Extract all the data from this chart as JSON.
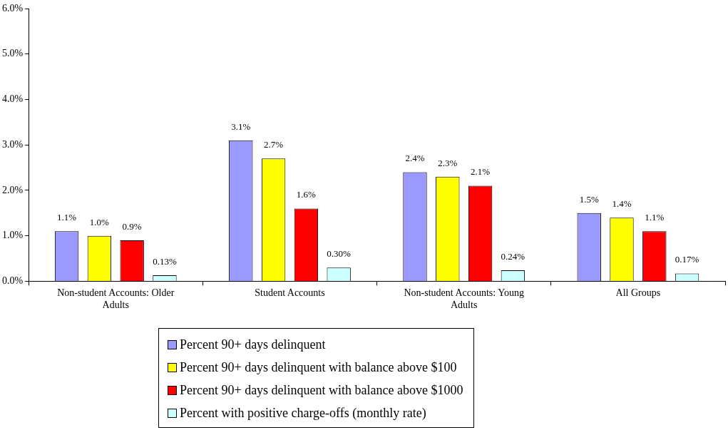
{
  "chart_data": {
    "type": "bar",
    "categories": [
      "Non-student Accounts: Older Adults",
      "Student Accounts",
      "Non-student Accounts: Young Adults",
      "All Groups"
    ],
    "series": [
      {
        "name": "Percent 90+ days delinquent",
        "color": "#9999ff",
        "values": [
          1.1,
          3.1,
          2.4,
          1.5
        ],
        "value_labels": [
          "1.1%",
          "3.1%",
          "2.4%",
          "1.5%"
        ]
      },
      {
        "name": "Percent 90+ days delinquent with balance above $100",
        "color": "#ffff00",
        "values": [
          1.0,
          2.7,
          2.3,
          1.4
        ],
        "value_labels": [
          "1.0%",
          "2.7%",
          "2.3%",
          "1.4%"
        ]
      },
      {
        "name": "Percent 90+ days delinquent with balance above $1000",
        "color": "#ff0000",
        "values": [
          0.9,
          1.6,
          2.1,
          1.1
        ],
        "value_labels": [
          "0.9%",
          "1.6%",
          "2.1%",
          "1.1%"
        ]
      },
      {
        "name": "Percent with positive charge-offs (monthly rate)",
        "color": "#ccffff",
        "values": [
          0.13,
          0.3,
          0.24,
          0.17
        ],
        "value_labels": [
          "0.13%",
          "0.30%",
          "0.24%",
          "0.17%"
        ]
      }
    ],
    "ylim": [
      0,
      6
    ],
    "yticks": [
      {
        "value": 0,
        "label": "0.0%"
      },
      {
        "value": 1,
        "label": "1.0%"
      },
      {
        "value": 2,
        "label": "2.0%"
      },
      {
        "value": 3,
        "label": "3.0%"
      },
      {
        "value": 4,
        "label": "4.0%"
      },
      {
        "value": 5,
        "label": "5.0%"
      },
      {
        "value": 6,
        "label": "6.0%"
      }
    ],
    "grid": false,
    "legend": "bottom"
  }
}
